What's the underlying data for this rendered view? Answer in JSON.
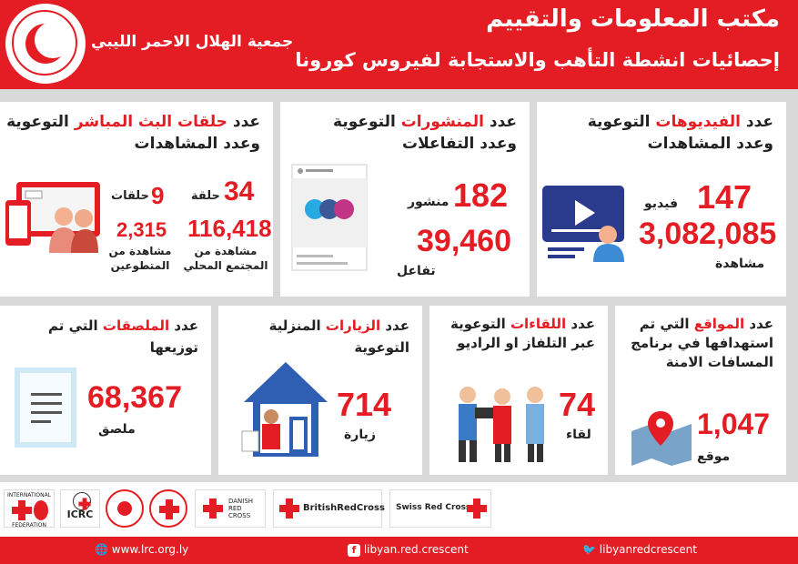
{
  "header": {
    "org_name": "جمعية الهلال الاحمر الليبي",
    "title": "مكتب المعلومات والتقييم",
    "subtitle": "إحصائيات انشطة التأهب والاستجابة لفيروس كورونا"
  },
  "cards": {
    "videos": {
      "title_pre": "عدد ",
      "title_hl": "الفيديوهات",
      "title_post": " التوعوية",
      "title_line2": "وعدد المشاهدات",
      "count": "147",
      "count_label": "فيديو",
      "views": "3,082,085",
      "views_label": "مشاهدة"
    },
    "posts": {
      "title_pre": "عدد ",
      "title_hl": "المنشورات",
      "title_post": " التوعوية",
      "title_line2": "وعدد التفاعلات",
      "count": "182",
      "count_label": "منشور",
      "interactions": "39,460",
      "interactions_label": "تفاعل"
    },
    "live": {
      "title_pre": "عدد ",
      "title_hl": "حلقات البث المباشر",
      "title_post": " التوعوية",
      "title_line2": "وعدد المشاهدات",
      "local_count": "34",
      "local_count_label": "حلقة",
      "local_views": "116,418",
      "local_views_label": "مشاهدة من المجتمع المحلي",
      "vol_count": "9",
      "vol_count_label": "حلقات",
      "vol_views": "2,315",
      "vol_views_label": "مشاهدة من المتطوعين"
    },
    "sites": {
      "title_pre": "عدد ",
      "title_hl": "المواقع",
      "title_post": " التي تم استهدافها",
      "title_line2": "في برنامج المسافات الامنة",
      "count": "1,047",
      "count_label": "موقع"
    },
    "meetings": {
      "title_pre": "عدد ",
      "title_hl": "اللقاءات",
      "title_post": " التوعوية",
      "title_line2": "عبر التلفاز او الراديو",
      "count": "74",
      "count_label": "لقاء"
    },
    "visits": {
      "title_pre": "عدد ",
      "title_hl": "الزيارات",
      "title_post": " المنزلية التوعوية",
      "count": "714",
      "count_label": "زيارة"
    },
    "posters": {
      "title_pre": "عدد ",
      "title_hl": "الملصقات",
      "title_post": " التي تم توزيعها",
      "count": "68,367",
      "count_label": "ملصق"
    }
  },
  "partners": {
    "ifrc_top": "INTERNATIONAL",
    "ifrc_bottom": "FEDERATION",
    "icrc": "ICRC",
    "danish": "DANISH RED CROSS",
    "british": "BritishRedCross",
    "swiss": "Swiss Red Cross"
  },
  "footer": {
    "website": "www.lrc.org.ly",
    "facebook": "libyan.red.crescent",
    "twitter": "libyanredcrescent"
  },
  "colors": {
    "brand_red": "#e31d23",
    "panel_grey": "#d9d9d9"
  }
}
